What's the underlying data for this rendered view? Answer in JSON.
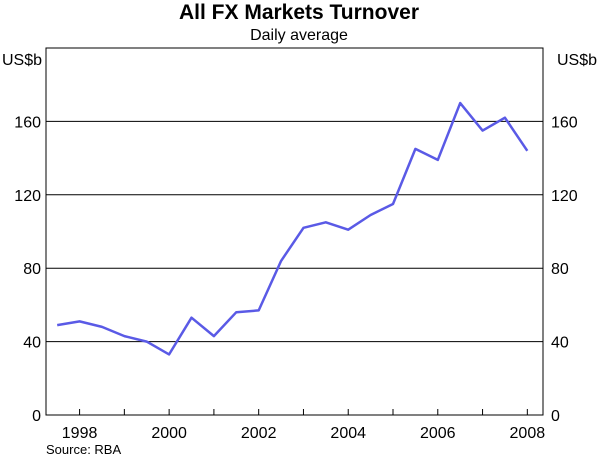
{
  "chart_data": {
    "type": "line",
    "title": "All FX Markets Turnover",
    "subtitle": "Daily average",
    "y_unit_left": "US$b",
    "y_unit_right": "US$b",
    "ylim": [
      0,
      200
    ],
    "y_ticks": [
      0,
      40,
      80,
      120,
      160
    ],
    "y_tick_labels": [
      "0",
      "40",
      "80",
      "120",
      "160"
    ],
    "xlim": [
      1997.25,
      2008.35
    ],
    "x_ticks": [
      1998,
      2000,
      2002,
      2004,
      2006,
      2008
    ],
    "x_tick_labels": [
      "1998",
      "2000",
      "2002",
      "2004",
      "2006",
      "2008"
    ],
    "grid": "horizontal",
    "line_color": "#5a5ae6",
    "series": [
      {
        "x": [
          1997.5,
          1998.0,
          1998.5,
          1999.0,
          1999.5,
          2000.0,
          2000.5,
          2001.0,
          2001.5,
          2002.0,
          2002.5,
          2003.0,
          2003.5,
          2004.0,
          2004.5,
          2005.0,
          2005.5,
          2006.0,
          2006.5,
          2007.0,
          2007.5,
          2008.0
        ],
        "y": [
          49,
          51,
          48,
          43,
          40,
          33,
          53,
          43,
          56,
          57,
          84,
          102,
          105,
          101,
          109,
          115,
          145,
          139,
          170,
          155,
          162,
          144
        ]
      }
    ]
  },
  "source": "Source: RBA"
}
